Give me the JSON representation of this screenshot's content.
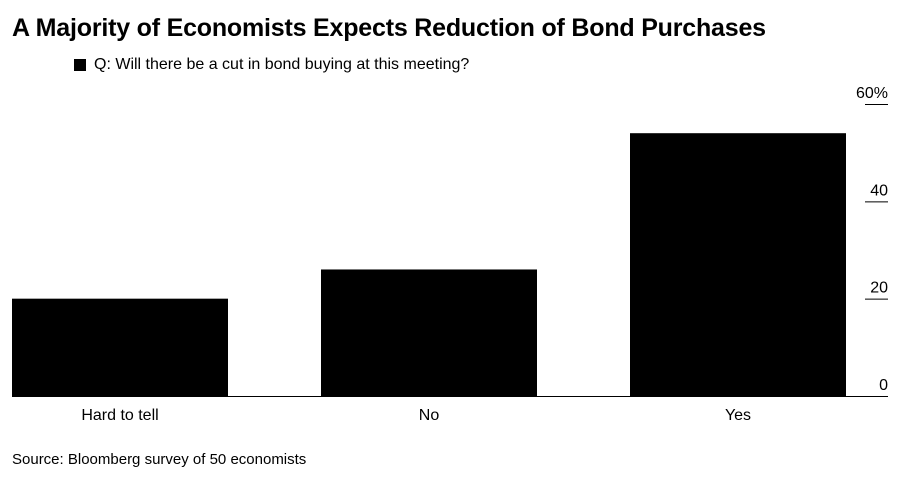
{
  "title": "A Majority of Economists Expects Reduction of Bond Purchases",
  "legend": {
    "label": "Q: Will there be a cut in bond buying at this meeting?",
    "color": "#000000"
  },
  "source": "Source: Bloomberg survey of 50 economists",
  "chart_data": {
    "type": "bar",
    "title": "A Majority of Economists Expects Reduction of Bond Purchases",
    "categories": [
      "Hard to tell",
      "No",
      "Yes"
    ],
    "series": [
      {
        "name": "Q: Will there be a cut in bond buying at this meeting?",
        "values": [
          20,
          26,
          54
        ],
        "color": "#000000"
      }
    ],
    "y_ticks": [
      0,
      20,
      40,
      60
    ],
    "y_tick_labels": [
      "0",
      "20",
      "40",
      "60%"
    ],
    "ylim": [
      0,
      60
    ],
    "xlabel": "",
    "ylabel": "",
    "y_axis_position": "right",
    "grid": false
  }
}
